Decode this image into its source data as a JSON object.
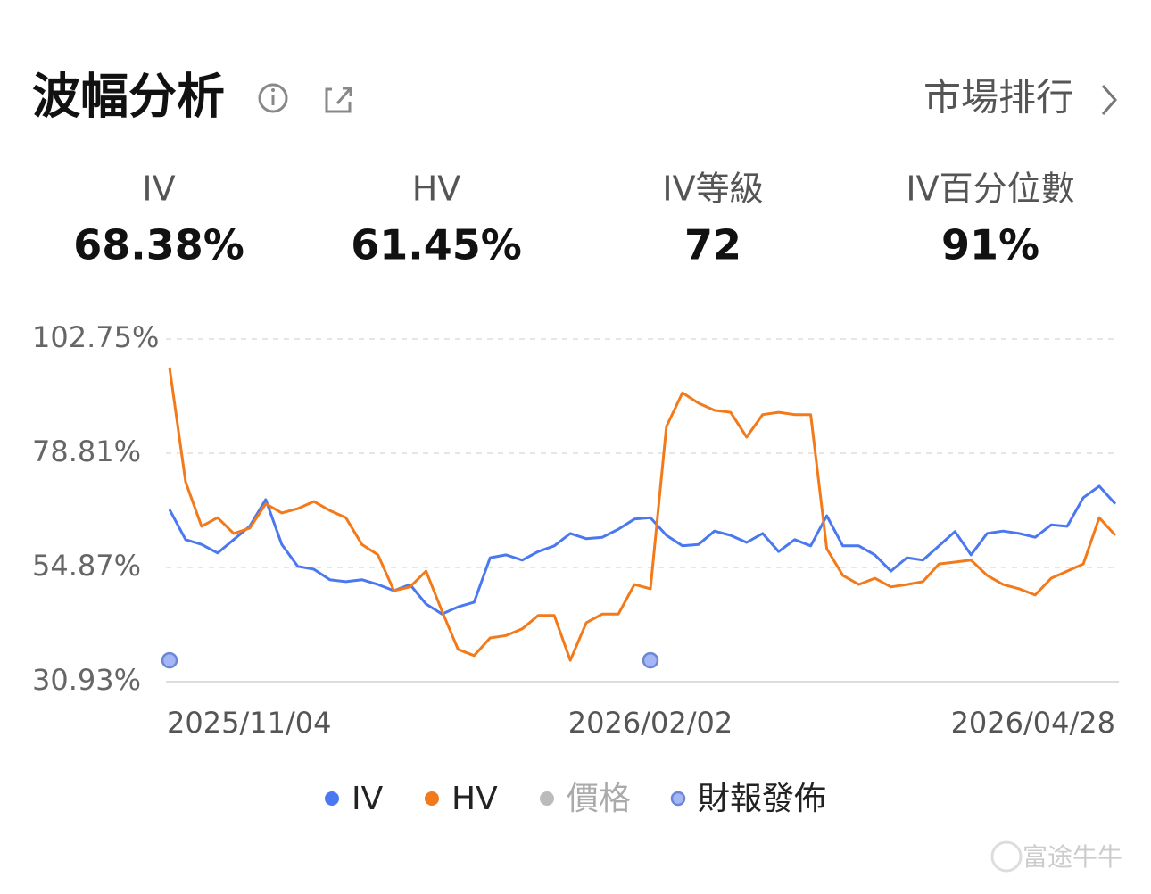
{
  "header": {
    "title": "波幅分析",
    "link": "市場排行"
  },
  "stats": [
    {
      "label": "IV",
      "value": "68.38%"
    },
    {
      "label": "HV",
      "value": "61.45%"
    },
    {
      "label": "IV等級",
      "value": "72"
    },
    {
      "label": "IV百分位數",
      "value": "91%"
    }
  ],
  "chart_data": {
    "type": "line",
    "categories": [
      "2025/11/04",
      null,
      null,
      null,
      null,
      null,
      null,
      null,
      null,
      null,
      null,
      null,
      null,
      null,
      null,
      null,
      null,
      null,
      null,
      null,
      null,
      null,
      null,
      null,
      null,
      null,
      null,
      null,
      null,
      null,
      "2026/02/02",
      null,
      null,
      null,
      null,
      null,
      null,
      null,
      null,
      null,
      null,
      null,
      null,
      null,
      null,
      null,
      null,
      null,
      null,
      null,
      null,
      null,
      null,
      null,
      null,
      null,
      null,
      null,
      null,
      "2026/04/28"
    ],
    "ylim": [
      30.93,
      102.75
    ],
    "yticks": [
      {
        "value": 30.93,
        "label": "30.93%"
      },
      {
        "value": 54.87,
        "label": "54.87%"
      },
      {
        "value": 78.81,
        "label": "78.81%"
      },
      {
        "value": 102.75,
        "label": "102.75%"
      }
    ],
    "grid": true,
    "series": [
      {
        "name": "IV",
        "color": "#4a78f0",
        "type": "line",
        "values": [
          67.0,
          60.7,
          59.7,
          57.9,
          60.7,
          63.5,
          69.1,
          59.7,
          55.1,
          54.5,
          52.3,
          51.9,
          52.3,
          51.3,
          50.0,
          51.3,
          47.2,
          45.1,
          46.6,
          47.6,
          56.9,
          57.5,
          56.4,
          58.2,
          59.4,
          62.0,
          60.9,
          61.2,
          62.9,
          65.0,
          65.3,
          61.6,
          59.4,
          59.7,
          62.5,
          61.6,
          60.1,
          62.0,
          58.2,
          60.7,
          59.4,
          65.7,
          59.4,
          59.4,
          57.5,
          54.1,
          56.9,
          56.4,
          59.4,
          62.4,
          57.5,
          62.0,
          62.5,
          62.0,
          61.2,
          63.8,
          63.5,
          69.5,
          71.9,
          68.2
        ]
      },
      {
        "name": "HV",
        "color": "#f27a1a",
        "type": "line",
        "values": [
          96.8,
          72.8,
          63.5,
          65.3,
          62.0,
          63.1,
          68.2,
          66.3,
          67.2,
          68.7,
          66.8,
          65.3,
          59.7,
          57.5,
          50.0,
          50.8,
          54.1,
          45.7,
          37.7,
          36.4,
          40.1,
          40.6,
          42.0,
          44.8,
          44.8,
          35.4,
          43.3,
          45.1,
          45.1,
          51.3,
          50.4,
          84.4,
          91.5,
          89.3,
          87.8,
          87.4,
          82.2,
          86.9,
          87.4,
          86.9,
          86.9,
          58.8,
          53.2,
          51.3,
          52.6,
          50.8,
          51.3,
          51.9,
          55.6,
          56.0,
          56.4,
          53.2,
          51.3,
          50.4,
          49.1,
          52.6,
          54.1,
          55.6,
          65.3,
          61.6
        ]
      },
      {
        "name": "價格",
        "color": "#bbbbbb",
        "type": "line",
        "visible": false
      },
      {
        "name": "財報發佈",
        "color": "#a3b6f5",
        "type": "scatter",
        "values": [
          35.4,
          null,
          null,
          null,
          null,
          null,
          null,
          null,
          null,
          null,
          null,
          null,
          null,
          null,
          null,
          null,
          null,
          null,
          null,
          null,
          null,
          null,
          null,
          null,
          null,
          null,
          null,
          null,
          null,
          null,
          35.4,
          null,
          null,
          null,
          null,
          null,
          null,
          null,
          null,
          null,
          null,
          null,
          null,
          null,
          null,
          null,
          null,
          null,
          null,
          null,
          null,
          null,
          null,
          null,
          null,
          null,
          null,
          null,
          null,
          null
        ]
      }
    ]
  },
  "watermark": "富途牛牛"
}
